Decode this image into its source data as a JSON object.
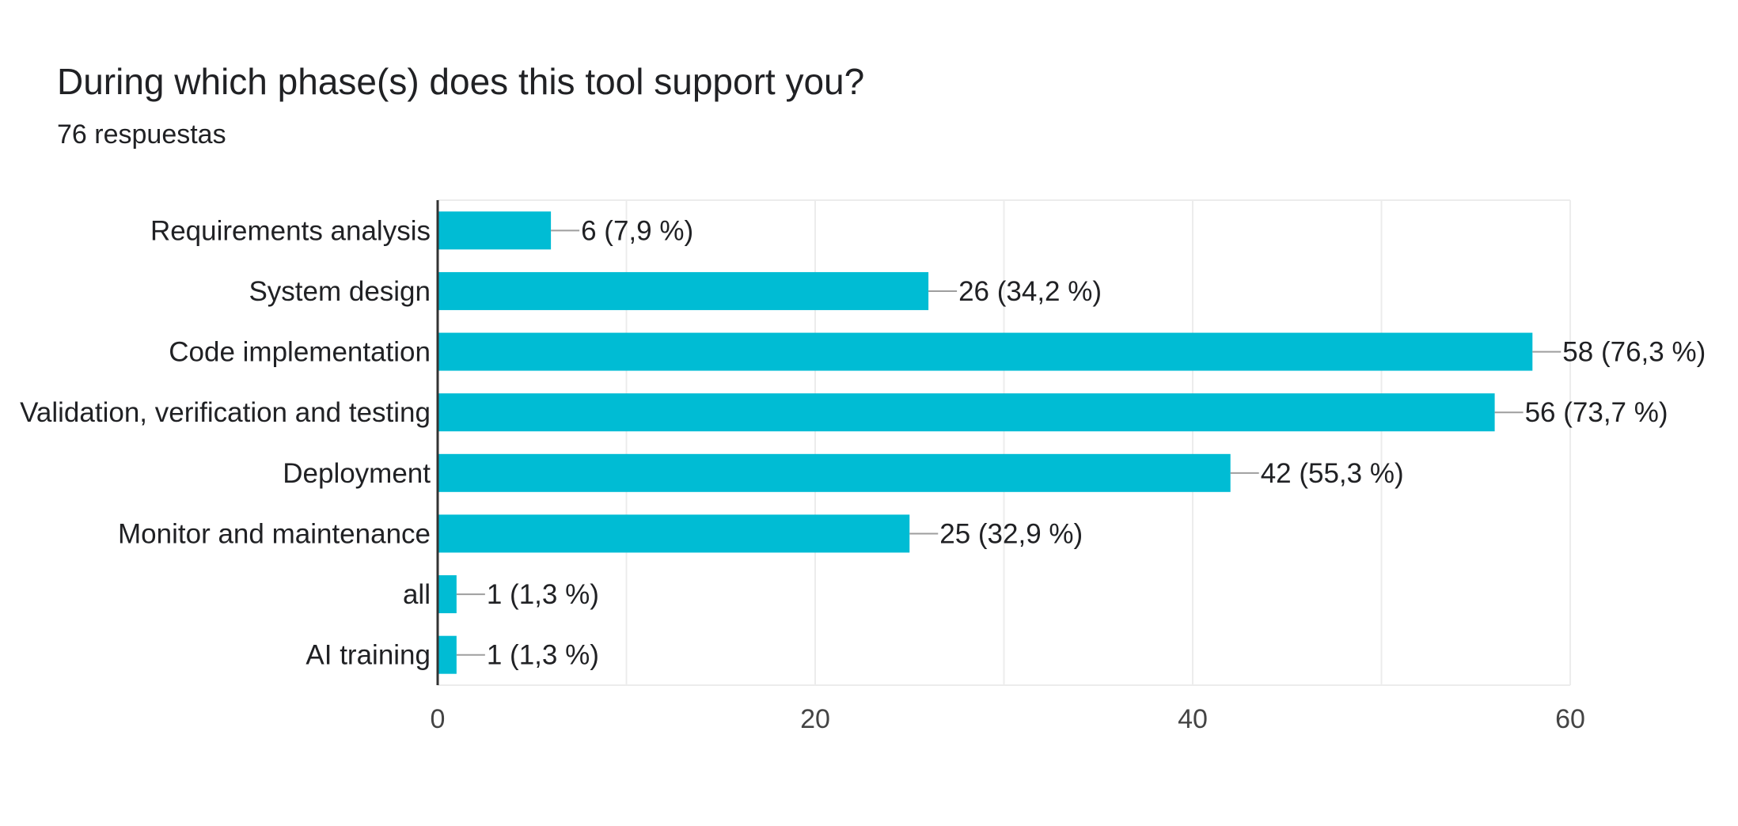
{
  "chart_data": {
    "type": "bar",
    "orientation": "horizontal",
    "title": "During which phase(s) does this tool support you?",
    "subtitle": "76 respuestas",
    "categories": [
      "Requirements analysis",
      "System design",
      "Code implementation",
      "Validation, verification and testing",
      "Deployment",
      "Monitor and maintenance",
      "all",
      "AI training"
    ],
    "values": [
      6,
      26,
      58,
      56,
      42,
      25,
      1,
      1
    ],
    "data_labels": [
      "6 (7,9 %)",
      "26 (34,2 %)",
      "58 (76,3 %)",
      "56 (73,7 %)",
      "42 (55,3 %)",
      "25 (32,9 %)",
      "1 (1,3 %)",
      "1 (1,3 %)"
    ],
    "xlim": [
      0,
      60
    ],
    "x_ticks": [
      0,
      20,
      40,
      60
    ],
    "x_tick_labels": [
      "0",
      "20",
      "40",
      "60"
    ],
    "grid": true,
    "legend": "none",
    "colors": {
      "bar": "#00bcd4",
      "grid": "#ececec",
      "axis": "#333333",
      "leader": "#9e9e9e"
    }
  }
}
